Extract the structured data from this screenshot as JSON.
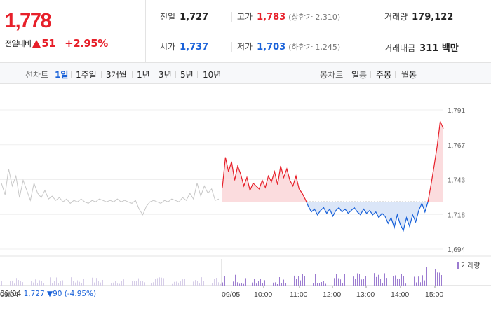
{
  "summary": {
    "price": "1,778",
    "change_label": "전일대비",
    "change_value": "51",
    "change_pct": "+2.95%",
    "prev_close": {
      "label": "전일",
      "value": "1,727"
    },
    "high": {
      "label": "고가",
      "value": "1,783",
      "limit_label": "(상한가 2,310)"
    },
    "volume": {
      "label": "거래량",
      "value": "179,122"
    },
    "open": {
      "label": "시가",
      "value": "1,737"
    },
    "low": {
      "label": "저가",
      "value": "1,703",
      "limit_label": "(하한가 1,245)"
    },
    "amount": {
      "label": "거래대금",
      "value": "311 백만"
    }
  },
  "tabs": {
    "line_label": "선차트",
    "line": [
      "1일",
      "1주일",
      "3개월",
      "1년",
      "3년",
      "5년",
      "10년"
    ],
    "line_active": "1일",
    "candle_label": "봉차트",
    "candle": [
      "일봉",
      "주봉",
      "월봉"
    ]
  },
  "colors": {
    "up": "#e7202a",
    "down": "#1a62d9",
    "prev": "#c8c8c8",
    "volume": "#9b7bd0"
  },
  "chart_data": {
    "type": "line",
    "y_ticks": [
      "1,791",
      "1,767",
      "1,743",
      "1,718",
      "1,694"
    ],
    "ylim": [
      1694,
      1791
    ],
    "base_price": 1727,
    "x_ticks": [
      "09/04",
      "09/05",
      "10:00",
      "11:00",
      "12:00",
      "13:00",
      "14:00",
      "15:00"
    ],
    "volume_legend": "거래량",
    "prev_day_info": {
      "date": "09/04",
      "close": "1,727",
      "change": "▼90",
      "pct": "(-4.95%)"
    },
    "prev_day_series": [
      1740,
      1732,
      1750,
      1738,
      1745,
      1730,
      1742,
      1735,
      1728,
      1740,
      1733,
      1730,
      1735,
      1729,
      1731,
      1728,
      1730,
      1727,
      1729,
      1726,
      1728,
      1727,
      1729,
      1727,
      1726,
      1728,
      1727,
      1729,
      1728,
      1727,
      1728,
      1727,
      1729,
      1727,
      1728,
      1727,
      1726,
      1728,
      1722,
      1718,
      1724,
      1727,
      1728,
      1727,
      1726,
      1728,
      1727,
      1729,
      1728,
      1727,
      1730,
      1728,
      1733,
      1729,
      1740,
      1731,
      1738,
      1733,
      1736,
      1728,
      1729
    ],
    "today_series": [
      1737,
      1758,
      1748,
      1755,
      1742,
      1752,
      1746,
      1738,
      1744,
      1735,
      1740,
      1738,
      1736,
      1742,
      1737,
      1745,
      1741,
      1748,
      1739,
      1752,
      1744,
      1750,
      1742,
      1738,
      1745,
      1736,
      1733,
      1729,
      1724,
      1720,
      1722,
      1718,
      1721,
      1723,
      1719,
      1722,
      1717,
      1721,
      1723,
      1720,
      1722,
      1719,
      1721,
      1723,
      1720,
      1718,
      1722,
      1719,
      1721,
      1718,
      1720,
      1716,
      1719,
      1717,
      1712,
      1716,
      1709,
      1718,
      1711,
      1707,
      1716,
      1710,
      1718,
      1713,
      1721,
      1726,
      1720,
      1727,
      1739,
      1752,
      1766,
      1783,
      1778
    ]
  }
}
